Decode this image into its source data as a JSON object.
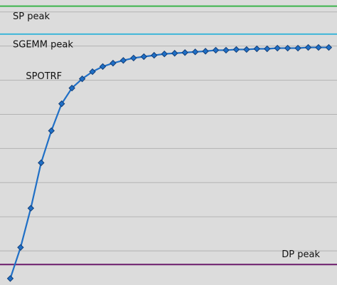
{
  "chart_data": {
    "type": "line",
    "x": [
      1,
      2,
      3,
      4,
      5,
      6,
      7,
      8,
      9,
      10,
      11,
      12,
      13,
      14,
      15,
      16,
      17,
      18,
      19,
      20,
      21,
      22,
      23,
      24,
      25,
      26,
      27,
      28,
      29,
      30,
      31,
      32
    ],
    "series": [
      {
        "name": "SPOTRF",
        "color": "#1f6fc6",
        "values": [
          0.19,
          1.1,
          2.25,
          3.58,
          4.52,
          5.31,
          5.77,
          6.04,
          6.25,
          6.4,
          6.5,
          6.58,
          6.65,
          6.69,
          6.73,
          6.77,
          6.79,
          6.81,
          6.83,
          6.85,
          6.88,
          6.88,
          6.9,
          6.9,
          6.92,
          6.92,
          6.94,
          6.94,
          6.94,
          6.96,
          6.96,
          6.96
        ]
      }
    ],
    "reference_lines": [
      {
        "label": "SP peak",
        "value": 8.17,
        "color": "#3cb44b"
      },
      {
        "label": "SGEMM peak",
        "value": 7.35,
        "color": "#3fb6d9"
      },
      {
        "label": "DP peak",
        "value": 0.6,
        "color": "#6b1a6b"
      }
    ],
    "xlim": [
      0,
      32.8
    ],
    "ylim": [
      0,
      8.35
    ],
    "yticks": [
      1,
      2,
      3,
      4,
      5,
      6,
      7,
      8
    ],
    "grid": true
  }
}
